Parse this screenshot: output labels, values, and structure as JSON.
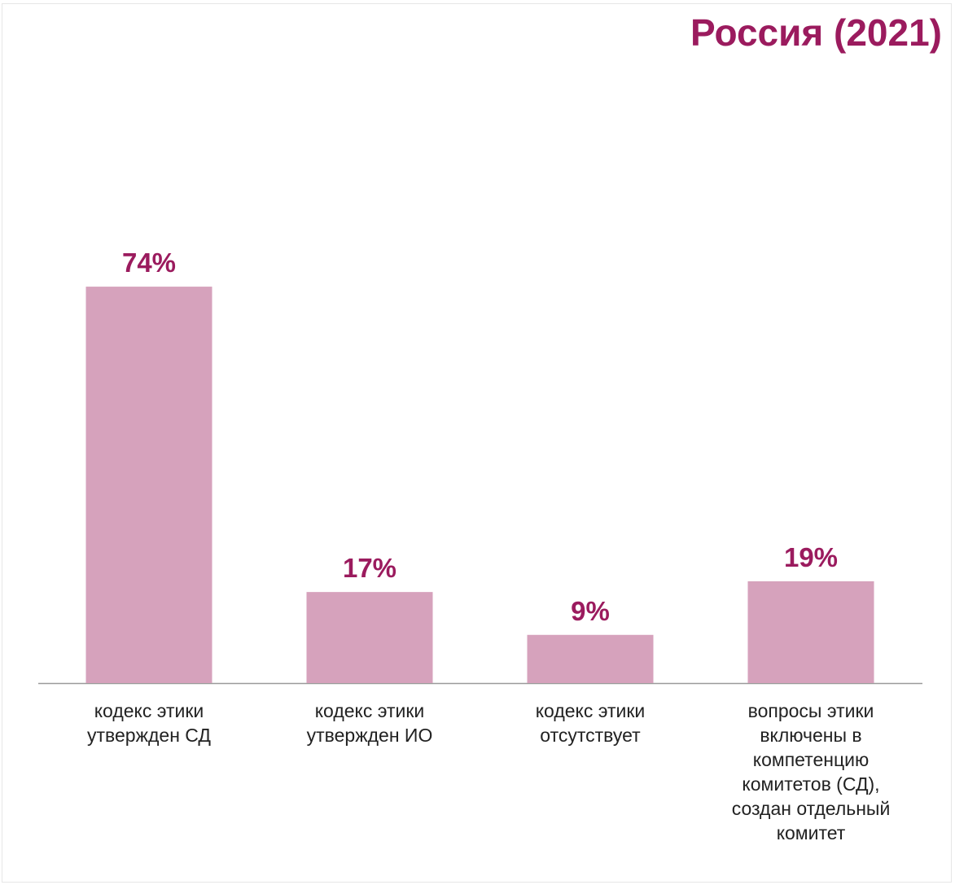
{
  "chart_data": {
    "type": "bar",
    "title": "Россия (2021)",
    "categories": [
      "кодекс этики\nутвержден СД",
      "кодекс этики\nутвержден ИО",
      "кодекс этики\nотсутствует",
      "вопросы этики\nвключены в\nкомпетенцию\nкомитетов (СД),\nсоздан отдельный\nкомитет"
    ],
    "values": [
      74,
      17,
      9,
      19
    ],
    "value_labels": [
      "74%",
      "17%",
      "9%",
      "19%"
    ],
    "unit": "%",
    "xlabel": "",
    "ylabel": "",
    "ylim": [
      0,
      100
    ],
    "grid": false,
    "legend": "none",
    "colors": {
      "bar": "#d6a2bc",
      "value_label": "#9b1b5e",
      "title": "#9b1b5e",
      "baseline": "#9a9a9a"
    }
  }
}
